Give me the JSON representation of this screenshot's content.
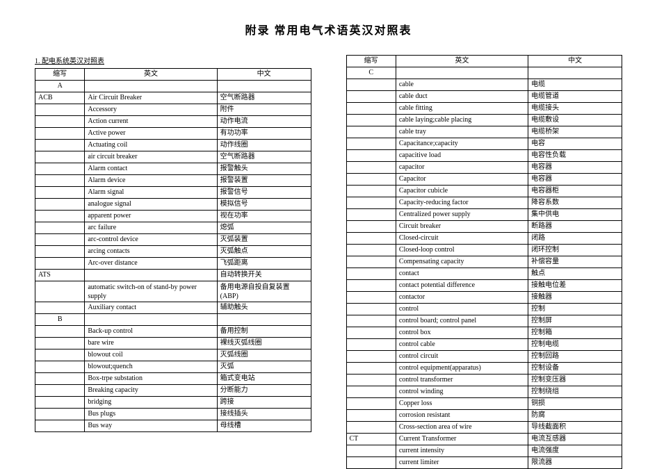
{
  "title": "附录  常用电气术语英汉对照表",
  "section_label": "1. 配电系统英汉对照表",
  "headers": {
    "col1": "缩写",
    "col2": "英文",
    "col3": "中文"
  },
  "left_rows": [
    {
      "c1": "A",
      "c2": "",
      "c3": "",
      "letter": true
    },
    {
      "c1": "ACB",
      "c2": "Air Circuit Breaker",
      "c3": "空气断路器"
    },
    {
      "c1": "",
      "c2": "Accessory",
      "c3": "附件"
    },
    {
      "c1": "",
      "c2": "Action current",
      "c3": "动作电流"
    },
    {
      "c1": "",
      "c2": "Active power",
      "c3": "有功功率"
    },
    {
      "c1": "",
      "c2": "Actuating coil",
      "c3": "动作线圈"
    },
    {
      "c1": "",
      "c2": "air circuit breaker",
      "c3": "空气断路器"
    },
    {
      "c1": "",
      "c2": "Alarm contact",
      "c3": "报警触头"
    },
    {
      "c1": "",
      "c2": "Alarm device",
      "c3": "报警装置"
    },
    {
      "c1": "",
      "c2": "Alarm signal",
      "c3": "报警信号"
    },
    {
      "c1": "",
      "c2": "analogue signal",
      "c3": "模拟信号"
    },
    {
      "c1": "",
      "c2": "apparent power",
      "c3": "视在功率"
    },
    {
      "c1": "",
      "c2": "arc failure",
      "c3": "熄弧"
    },
    {
      "c1": "",
      "c2": "arc-control device",
      "c3": "灭弧装置"
    },
    {
      "c1": "",
      "c2": "arcing contacts",
      "c3": "灭弧触点"
    },
    {
      "c1": "",
      "c2": "Arc-over distance",
      "c3": "飞弧距离"
    },
    {
      "c1": "ATS",
      "c2": "",
      "c3": "自动转换开关"
    },
    {
      "c1": "",
      "c2": "automatic switch-on of stand-by power supply",
      "c3": "备用电源自投自复装置 (ABP)",
      "tall": true
    },
    {
      "c1": "",
      "c2": "Auxiliary contact",
      "c3": "辅助触头"
    },
    {
      "c1": "B",
      "c2": "",
      "c3": "",
      "letter": true
    },
    {
      "c1": "",
      "c2": "Back-up control",
      "c3": "备用控制"
    },
    {
      "c1": "",
      "c2": "bare wire",
      "c3": "裸线灭弧线圈"
    },
    {
      "c1": "",
      "c2": "blowout coil",
      "c3": "灭弧线圈"
    },
    {
      "c1": "",
      "c2": "blowout;quench",
      "c3": "灭弧"
    },
    {
      "c1": "",
      "c2": "Box-trpe substation",
      "c3": "箱式变电站"
    },
    {
      "c1": "",
      "c2": "Breaking capacity",
      "c3": "分断能力"
    },
    {
      "c1": "",
      "c2": "bridging",
      "c3": "跨接"
    },
    {
      "c1": "",
      "c2": "Bus plugs",
      "c3": "接线插头"
    },
    {
      "c1": "",
      "c2": "Bus way",
      "c3": "母线槽"
    }
  ],
  "right_rows": [
    {
      "c1": "C",
      "c2": "",
      "c3": "",
      "letter": true
    },
    {
      "c1": "",
      "c2": "cable",
      "c3": "电缆"
    },
    {
      "c1": "",
      "c2": "cable duct",
      "c3": "电缆管道"
    },
    {
      "c1": "",
      "c2": "cable fitting",
      "c3": "电缆接头"
    },
    {
      "c1": "",
      "c2": "cable laying;cable placing",
      "c3": "电缆敷设"
    },
    {
      "c1": "",
      "c2": "cable tray",
      "c3": "电缆桥架"
    },
    {
      "c1": "",
      "c2": "Capacitance;capacity",
      "c3": "电容"
    },
    {
      "c1": "",
      "c2": "capacitive load",
      "c3": "电容性负载"
    },
    {
      "c1": "",
      "c2": "capacitor",
      "c3": "电容器"
    },
    {
      "c1": "",
      "c2": "Capacitor",
      "c3": "电容器"
    },
    {
      "c1": "",
      "c2": "Capacitor cubicle",
      "c3": "电容器柜"
    },
    {
      "c1": "",
      "c2": "Capacity-reducing factor",
      "c3": "降容系数"
    },
    {
      "c1": "",
      "c2": "Centralized power supply",
      "c3": "集中供电"
    },
    {
      "c1": "",
      "c2": "Circuit breaker",
      "c3": "断路器"
    },
    {
      "c1": "",
      "c2": "Closed-circuit",
      "c3": "闭路"
    },
    {
      "c1": "",
      "c2": "Closed-loop control",
      "c3": "闭环控制"
    },
    {
      "c1": "",
      "c2": "Compensating capacity",
      "c3": "补偿容量"
    },
    {
      "c1": "",
      "c2": "contact",
      "c3": "触点"
    },
    {
      "c1": "",
      "c2": "contact potential difference",
      "c3": "接触电位差"
    },
    {
      "c1": "",
      "c2": "contactor",
      "c3": "接触器"
    },
    {
      "c1": "",
      "c2": "control",
      "c3": "控制"
    },
    {
      "c1": "",
      "c2": "control board; control panel",
      "c3": "控制屏"
    },
    {
      "c1": "",
      "c2": "control box",
      "c3": "控制箱"
    },
    {
      "c1": "",
      "c2": "control cable",
      "c3": "控制电缆"
    },
    {
      "c1": "",
      "c2": "control circuit",
      "c3": "控制回路"
    },
    {
      "c1": "",
      "c2": "control equipment(apparatus)",
      "c3": "控制设备"
    },
    {
      "c1": "",
      "c2": "control transformer",
      "c3": "控制变压器"
    },
    {
      "c1": "",
      "c2": "control winding",
      "c3": "控制绕组"
    },
    {
      "c1": "",
      "c2": "Copper loss",
      "c3": "铜损"
    },
    {
      "c1": "",
      "c2": "corrosion resistant",
      "c3": "防腐"
    },
    {
      "c1": "",
      "c2": "Cross-section area of wire",
      "c3": "导线截面积"
    },
    {
      "c1": "CT",
      "c2": "Current Transformer",
      "c3": "电流互感器"
    },
    {
      "c1": "",
      "c2": "current intensity",
      "c3": "电流强度"
    },
    {
      "c1": "",
      "c2": "current limiter",
      "c3": "限流器"
    }
  ]
}
